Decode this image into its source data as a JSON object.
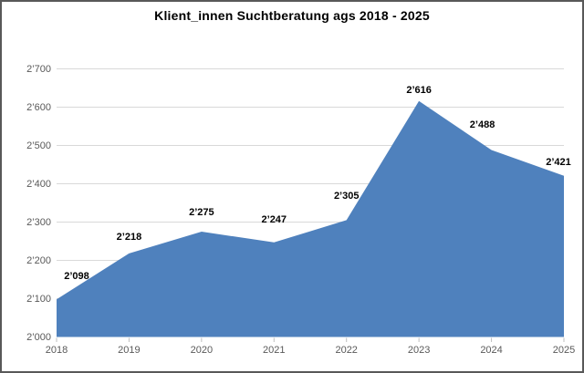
{
  "chart_data": {
    "type": "area",
    "title": "Klient_innen Suchtberatung ags 2018 - 2025",
    "categories": [
      "2018",
      "2019",
      "2020",
      "2021",
      "2022",
      "2023",
      "2024",
      "2025"
    ],
    "values": [
      2098,
      2218,
      2275,
      2247,
      2305,
      2616,
      2488,
      2421
    ],
    "point_labels": [
      "2’098",
      "2’218",
      "2’275",
      "2’247",
      "2’305",
      "2’616",
      "2’488",
      "2’421"
    ],
    "xlabel": "",
    "ylabel": "",
    "ylim": [
      2000,
      2700
    ],
    "yticks": [
      2000,
      2100,
      2200,
      2300,
      2400,
      2500,
      2600,
      2700
    ],
    "ytick_labels": [
      "2’000",
      "2’100",
      "2’200",
      "2’300",
      "2’400",
      "2’500",
      "2’600",
      "2’700"
    ],
    "grid": true,
    "legend_position": "none",
    "colors": {
      "area_fill": "#4F81BD",
      "gridline": "#D9D9D9",
      "tick_mark": "#BFBFBF",
      "axis_text": "#595959",
      "data_label_text": "#000000",
      "border": "#595959",
      "background": "#FFFFFF"
    }
  }
}
